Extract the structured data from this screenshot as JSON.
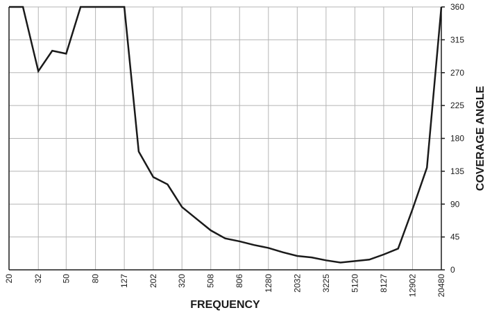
{
  "chart_data": {
    "type": "line",
    "title": "",
    "xlabel": "FREQUENCY",
    "ylabel": "COVERAGE ANGLE",
    "x_scale": "log",
    "x_ticks": [
      "20",
      "32",
      "50",
      "80",
      "127",
      "202",
      "320",
      "508",
      "806",
      "1280",
      "2032",
      "3225",
      "5120",
      "8127",
      "12902",
      "20480"
    ],
    "y_ticks": [
      0,
      45,
      90,
      135,
      180,
      225,
      270,
      315,
      360
    ],
    "ylim": [
      0,
      360
    ],
    "grid": true,
    "y_axis_side": "right",
    "series": [
      {
        "x": [
          20,
          25,
          32,
          40,
          50,
          63,
          80,
          100,
          127,
          160,
          202,
          254,
          320,
          403,
          508,
          640,
          806,
          1016,
          1280,
          1613,
          2032,
          2560,
          3225,
          4064,
          5120,
          6451,
          8127,
          10240,
          12902,
          16256,
          20480
        ],
        "y": [
          360,
          360,
          272,
          300,
          296,
          360,
          360,
          360,
          360,
          162,
          127,
          117,
          86,
          70,
          54,
          43,
          39,
          34,
          30,
          24,
          19,
          17,
          13,
          10,
          12,
          14,
          21,
          29,
          83,
          140,
          360
        ],
        "color": "#1a1a1a"
      }
    ]
  }
}
